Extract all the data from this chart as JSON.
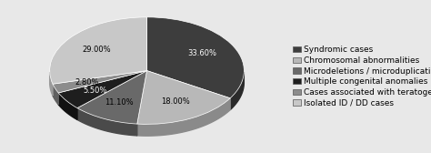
{
  "labels": [
    "Syndromic cases",
    "Chromosomal abnormalities",
    "Microdeletions / microduplications",
    "Multiple congenital anomalies",
    "Cases associated with teratogenic factors",
    "Isolated ID / DD cases"
  ],
  "values": [
    33.6,
    18.0,
    11.1,
    5.5,
    2.8,
    29.0
  ],
  "colors": [
    "#3d3d3d",
    "#b8b8b8",
    "#696969",
    "#1e1e1e",
    "#8c8c8c",
    "#c8c8c8"
  ],
  "shadow_colors": [
    "#2a2a2a",
    "#8a8a8a",
    "#4a4a4a",
    "#111111",
    "#606060",
    "#9a9a9a"
  ],
  "pct_labels": [
    "33.60%",
    "18.00%",
    "11.10%",
    "5.50%",
    "2.80%",
    "29.00%"
  ],
  "startangle": 90,
  "legend_fontsize": 6.5,
  "pct_fontsize": 6.0,
  "background_color": "#e8e8e8",
  "depth": 0.12,
  "ellipse_ratio": 0.55
}
